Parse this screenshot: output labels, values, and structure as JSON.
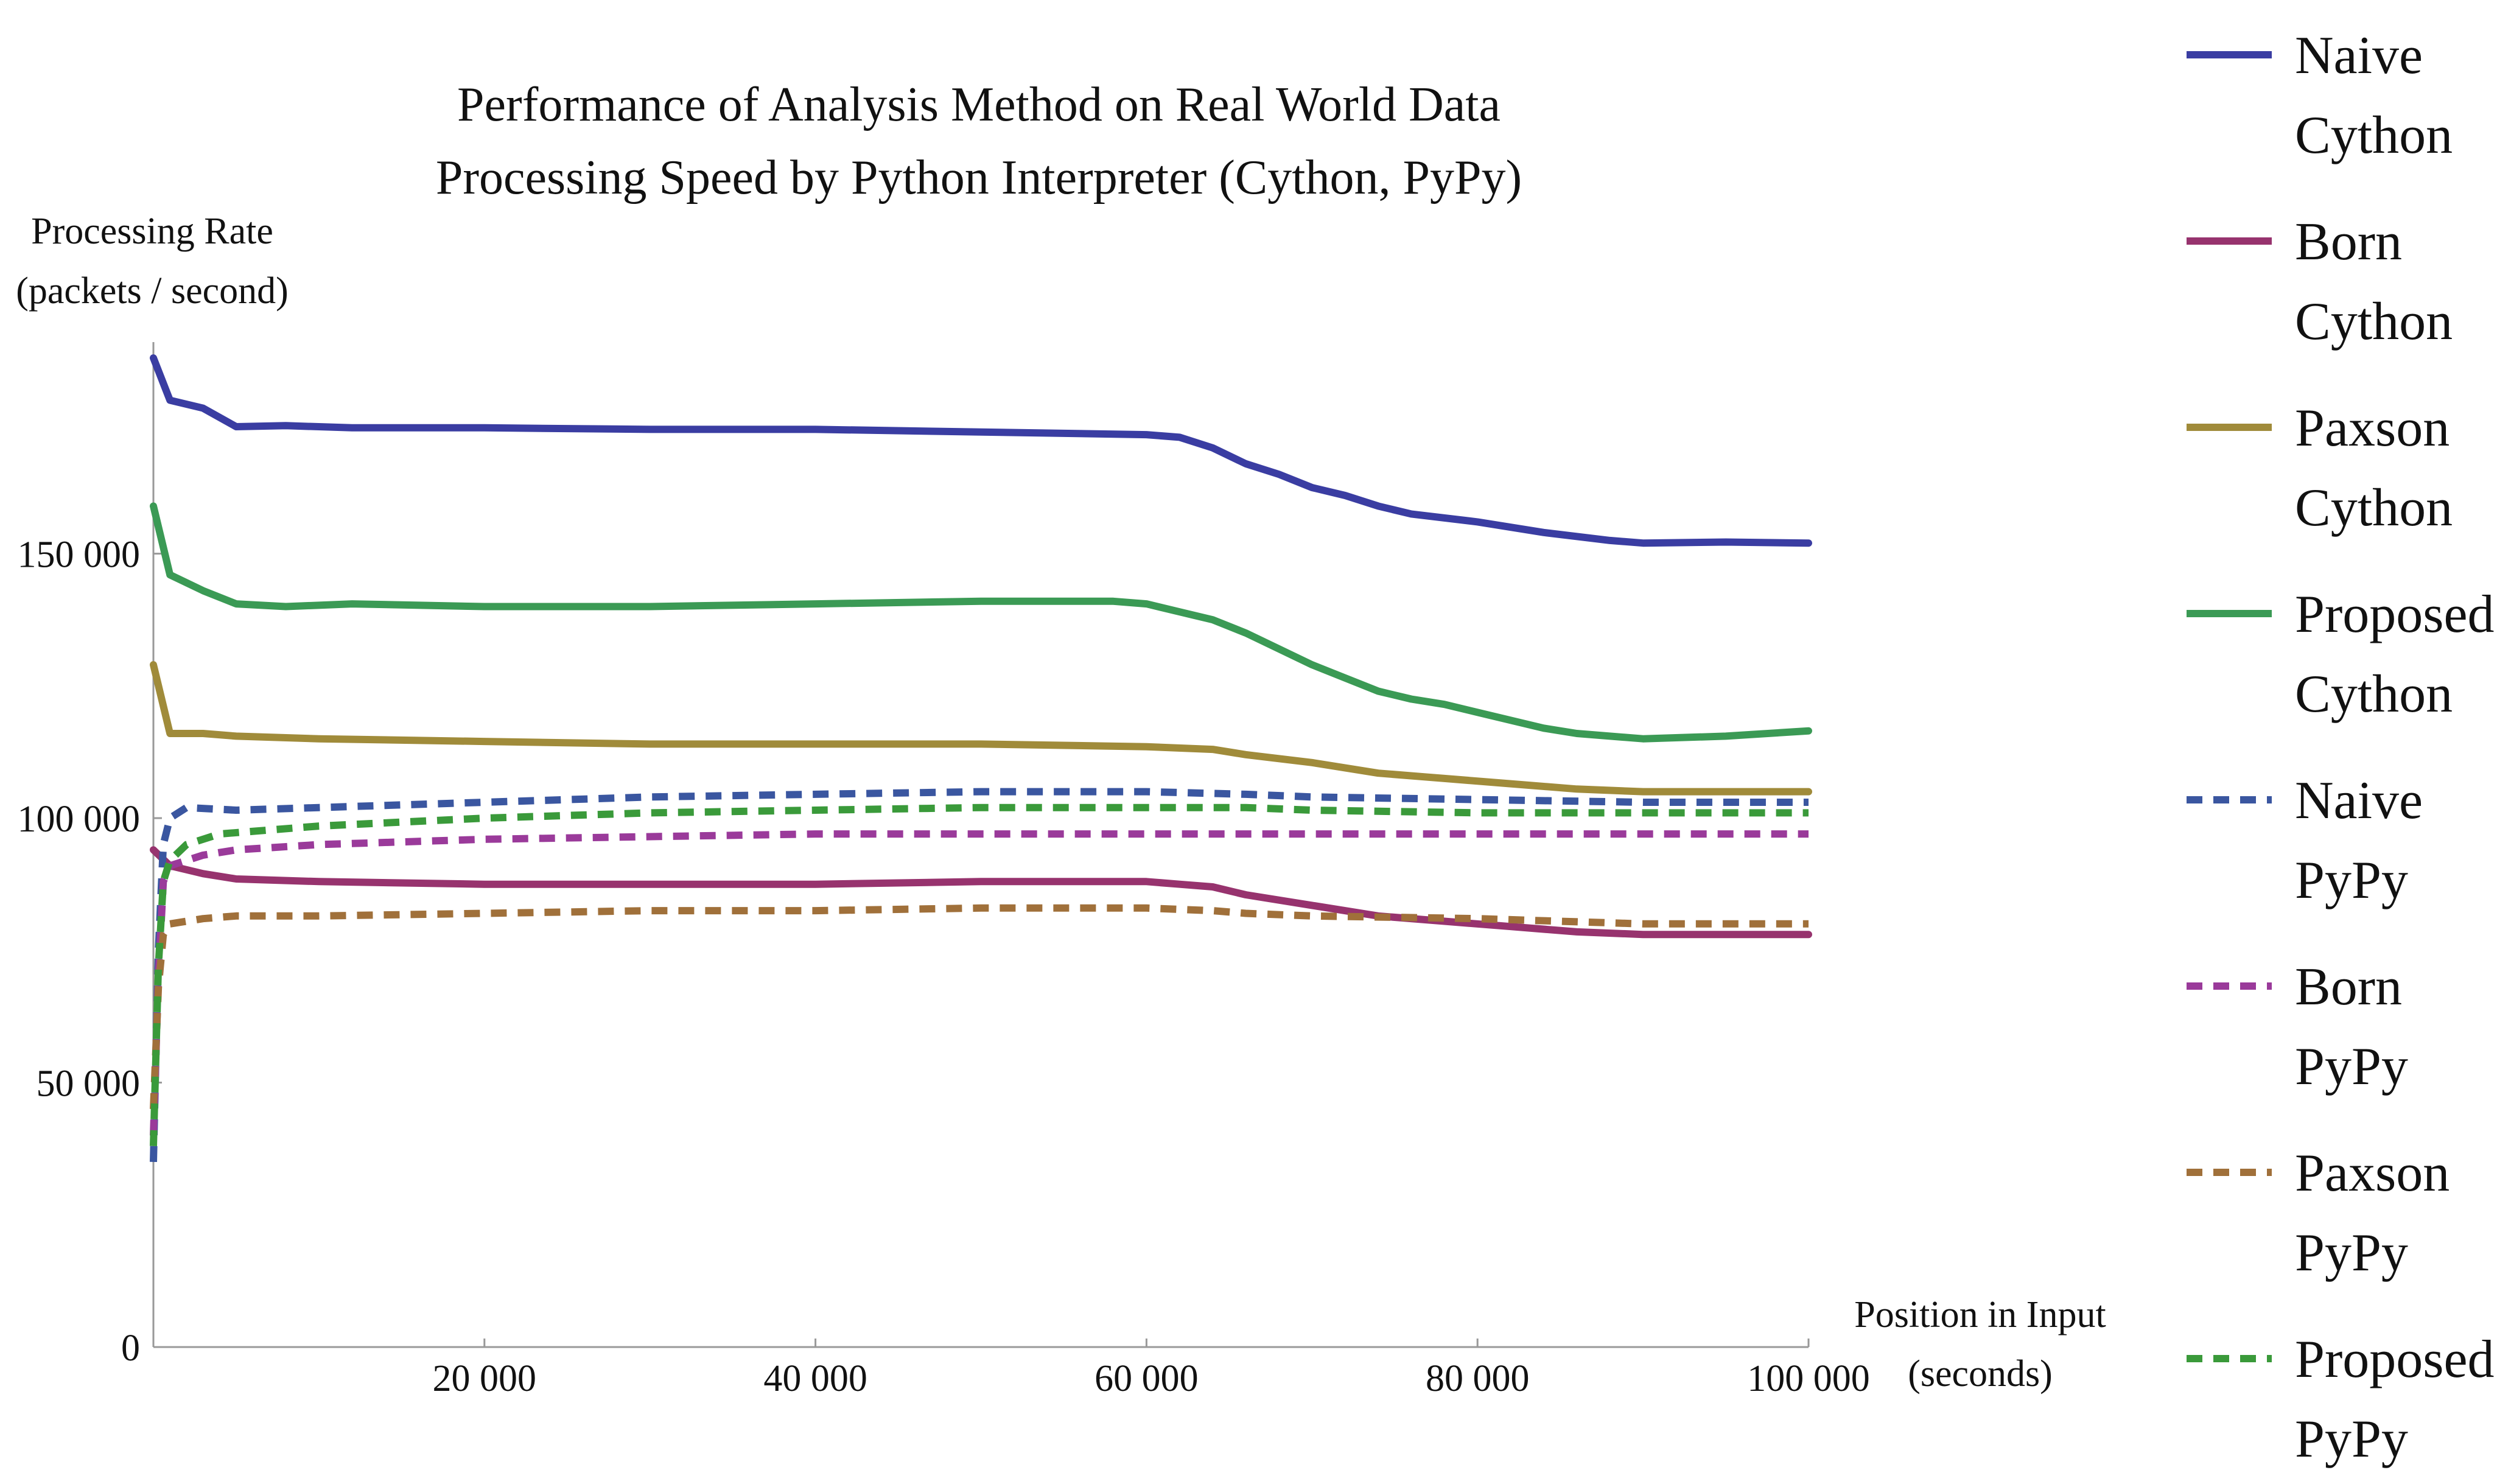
{
  "chart_data": {
    "type": "line",
    "title": "Performance of Analysis Method on Real World Data",
    "subtitle": "Processing Speed by Python Interpreter (Cython, PyPy)",
    "ylabel_lines": [
      "Processing Rate",
      "(packets / second)"
    ],
    "xlabel_lines": [
      "Position in Input",
      "(seconds)"
    ],
    "xlim": [
      0,
      100000
    ],
    "ylim": [
      0,
      190000
    ],
    "x_ticks": [
      20000,
      40000,
      60000,
      80000,
      100000
    ],
    "x_tick_labels": [
      "20 000",
      "40 000",
      "60 000",
      "80 000",
      "100 000"
    ],
    "y_ticks": [
      0,
      50000,
      100000,
      150000
    ],
    "y_tick_labels": [
      "0",
      "50 000",
      "100 000",
      "150 000"
    ],
    "grid": false,
    "legend_position": "right",
    "series": [
      {
        "name": "Naive Cython",
        "legend_lines": [
          "Naive",
          "Cython"
        ],
        "color": "#3a3da2",
        "dashed": false,
        "points": [
          [
            0,
            187000
          ],
          [
            1000,
            179000
          ],
          [
            3000,
            177500
          ],
          [
            5000,
            174000
          ],
          [
            8000,
            174200
          ],
          [
            12000,
            173800
          ],
          [
            20000,
            173800
          ],
          [
            30000,
            173500
          ],
          [
            40000,
            173500
          ],
          [
            50000,
            173000
          ],
          [
            60000,
            172500
          ],
          [
            62000,
            172000
          ],
          [
            64000,
            170000
          ],
          [
            66000,
            167000
          ],
          [
            68000,
            165000
          ],
          [
            70000,
            162500
          ],
          [
            72000,
            161000
          ],
          [
            74000,
            159000
          ],
          [
            76000,
            157500
          ],
          [
            80000,
            156000
          ],
          [
            84000,
            154000
          ],
          [
            88000,
            152500
          ],
          [
            90000,
            152000
          ],
          [
            95000,
            152200
          ],
          [
            100000,
            152000
          ]
        ]
      },
      {
        "name": "Born Cython",
        "legend_lines": [
          "Born",
          "Cython"
        ],
        "color": "#97336e",
        "dashed": false,
        "points": [
          [
            0,
            94000
          ],
          [
            1000,
            91000
          ],
          [
            3000,
            89500
          ],
          [
            5000,
            88500
          ],
          [
            10000,
            88000
          ],
          [
            20000,
            87500
          ],
          [
            30000,
            87500
          ],
          [
            40000,
            87500
          ],
          [
            50000,
            88000
          ],
          [
            60000,
            88000
          ],
          [
            62000,
            87500
          ],
          [
            64000,
            87000
          ],
          [
            66000,
            85500
          ],
          [
            70000,
            83500
          ],
          [
            74000,
            81500
          ],
          [
            78000,
            80500
          ],
          [
            82000,
            79500
          ],
          [
            86000,
            78500
          ],
          [
            90000,
            78000
          ],
          [
            100000,
            78000
          ]
        ]
      },
      {
        "name": "Paxson Cython",
        "legend_lines": [
          "Paxson",
          "Cython"
        ],
        "color": "#a08b3a",
        "dashed": false,
        "points": [
          [
            0,
            129000
          ],
          [
            1000,
            116000
          ],
          [
            3000,
            116000
          ],
          [
            5000,
            115500
          ],
          [
            10000,
            115000
          ],
          [
            20000,
            114500
          ],
          [
            30000,
            114000
          ],
          [
            40000,
            114000
          ],
          [
            50000,
            114000
          ],
          [
            60000,
            113500
          ],
          [
            64000,
            113000
          ],
          [
            66000,
            112000
          ],
          [
            70000,
            110500
          ],
          [
            74000,
            108500
          ],
          [
            78000,
            107500
          ],
          [
            82000,
            106500
          ],
          [
            86000,
            105500
          ],
          [
            90000,
            105000
          ],
          [
            100000,
            105000
          ]
        ]
      },
      {
        "name": "Proposed Cython",
        "legend_lines": [
          "Proposed",
          "Cython"
        ],
        "color": "#3b9a55",
        "dashed": false,
        "points": [
          [
            0,
            159000
          ],
          [
            1000,
            146000
          ],
          [
            3000,
            143000
          ],
          [
            5000,
            140500
          ],
          [
            8000,
            140000
          ],
          [
            12000,
            140500
          ],
          [
            20000,
            140000
          ],
          [
            30000,
            140000
          ],
          [
            40000,
            140500
          ],
          [
            50000,
            141000
          ],
          [
            58000,
            141000
          ],
          [
            60000,
            140500
          ],
          [
            62000,
            139000
          ],
          [
            64000,
            137500
          ],
          [
            66000,
            135000
          ],
          [
            68000,
            132000
          ],
          [
            70000,
            129000
          ],
          [
            72000,
            126500
          ],
          [
            74000,
            124000
          ],
          [
            76000,
            122500
          ],
          [
            78000,
            121500
          ],
          [
            80000,
            120000
          ],
          [
            82000,
            118500
          ],
          [
            84000,
            117000
          ],
          [
            86000,
            116000
          ],
          [
            90000,
            115000
          ],
          [
            95000,
            115500
          ],
          [
            100000,
            116500
          ]
        ]
      },
      {
        "name": "Naive PyPy",
        "legend_lines": [
          "Naive",
          "PyPy"
        ],
        "color": "#3a56a0",
        "dashed": true,
        "points": [
          [
            0,
            35000
          ],
          [
            300,
            75000
          ],
          [
            600,
            95000
          ],
          [
            1000,
            100000
          ],
          [
            2000,
            102000
          ],
          [
            5000,
            101500
          ],
          [
            10000,
            102000
          ],
          [
            20000,
            103000
          ],
          [
            30000,
            104000
          ],
          [
            40000,
            104500
          ],
          [
            50000,
            105000
          ],
          [
            60000,
            105000
          ],
          [
            66000,
            104500
          ],
          [
            70000,
            104000
          ],
          [
            80000,
            103500
          ],
          [
            90000,
            103000
          ],
          [
            100000,
            103000
          ]
        ]
      },
      {
        "name": "Born PyPy",
        "legend_lines": [
          "Born",
          "PyPy"
        ],
        "color": "#9a3a9a",
        "dashed": true,
        "points": [
          [
            0,
            40000
          ],
          [
            300,
            70000
          ],
          [
            600,
            88000
          ],
          [
            1000,
            91000
          ],
          [
            3000,
            93000
          ],
          [
            5000,
            94000
          ],
          [
            10000,
            95000
          ],
          [
            20000,
            96000
          ],
          [
            30000,
            96500
          ],
          [
            40000,
            97000
          ],
          [
            50000,
            97000
          ],
          [
            60000,
            97000
          ],
          [
            70000,
            97000
          ],
          [
            80000,
            97000
          ],
          [
            90000,
            97000
          ],
          [
            100000,
            97000
          ]
        ]
      },
      {
        "name": "Paxson PyPy",
        "legend_lines": [
          "Paxson",
          "PyPy"
        ],
        "color": "#a0703a",
        "dashed": true,
        "points": [
          [
            0,
            45000
          ],
          [
            300,
            68000
          ],
          [
            600,
            78000
          ],
          [
            1000,
            80000
          ],
          [
            3000,
            81000
          ],
          [
            5000,
            81500
          ],
          [
            10000,
            81500
          ],
          [
            20000,
            82000
          ],
          [
            30000,
            82500
          ],
          [
            40000,
            82500
          ],
          [
            50000,
            83000
          ],
          [
            60000,
            83000
          ],
          [
            64000,
            82500
          ],
          [
            66000,
            82000
          ],
          [
            70000,
            81500
          ],
          [
            80000,
            81000
          ],
          [
            90000,
            80000
          ],
          [
            100000,
            80000
          ]
        ]
      },
      {
        "name": "Proposed PyPy",
        "legend_lines": [
          "Proposed",
          "PyPy"
        ],
        "color": "#3a9a3a",
        "dashed": true,
        "points": [
          [
            0,
            38000
          ],
          [
            300,
            72000
          ],
          [
            600,
            88000
          ],
          [
            1000,
            92000
          ],
          [
            2000,
            95000
          ],
          [
            4000,
            97000
          ],
          [
            10000,
            98500
          ],
          [
            20000,
            100000
          ],
          [
            30000,
            101000
          ],
          [
            40000,
            101500
          ],
          [
            50000,
            102000
          ],
          [
            60000,
            102000
          ],
          [
            66000,
            102000
          ],
          [
            70000,
            101500
          ],
          [
            80000,
            101000
          ],
          [
            90000,
            101000
          ],
          [
            100000,
            101000
          ]
        ]
      }
    ]
  }
}
